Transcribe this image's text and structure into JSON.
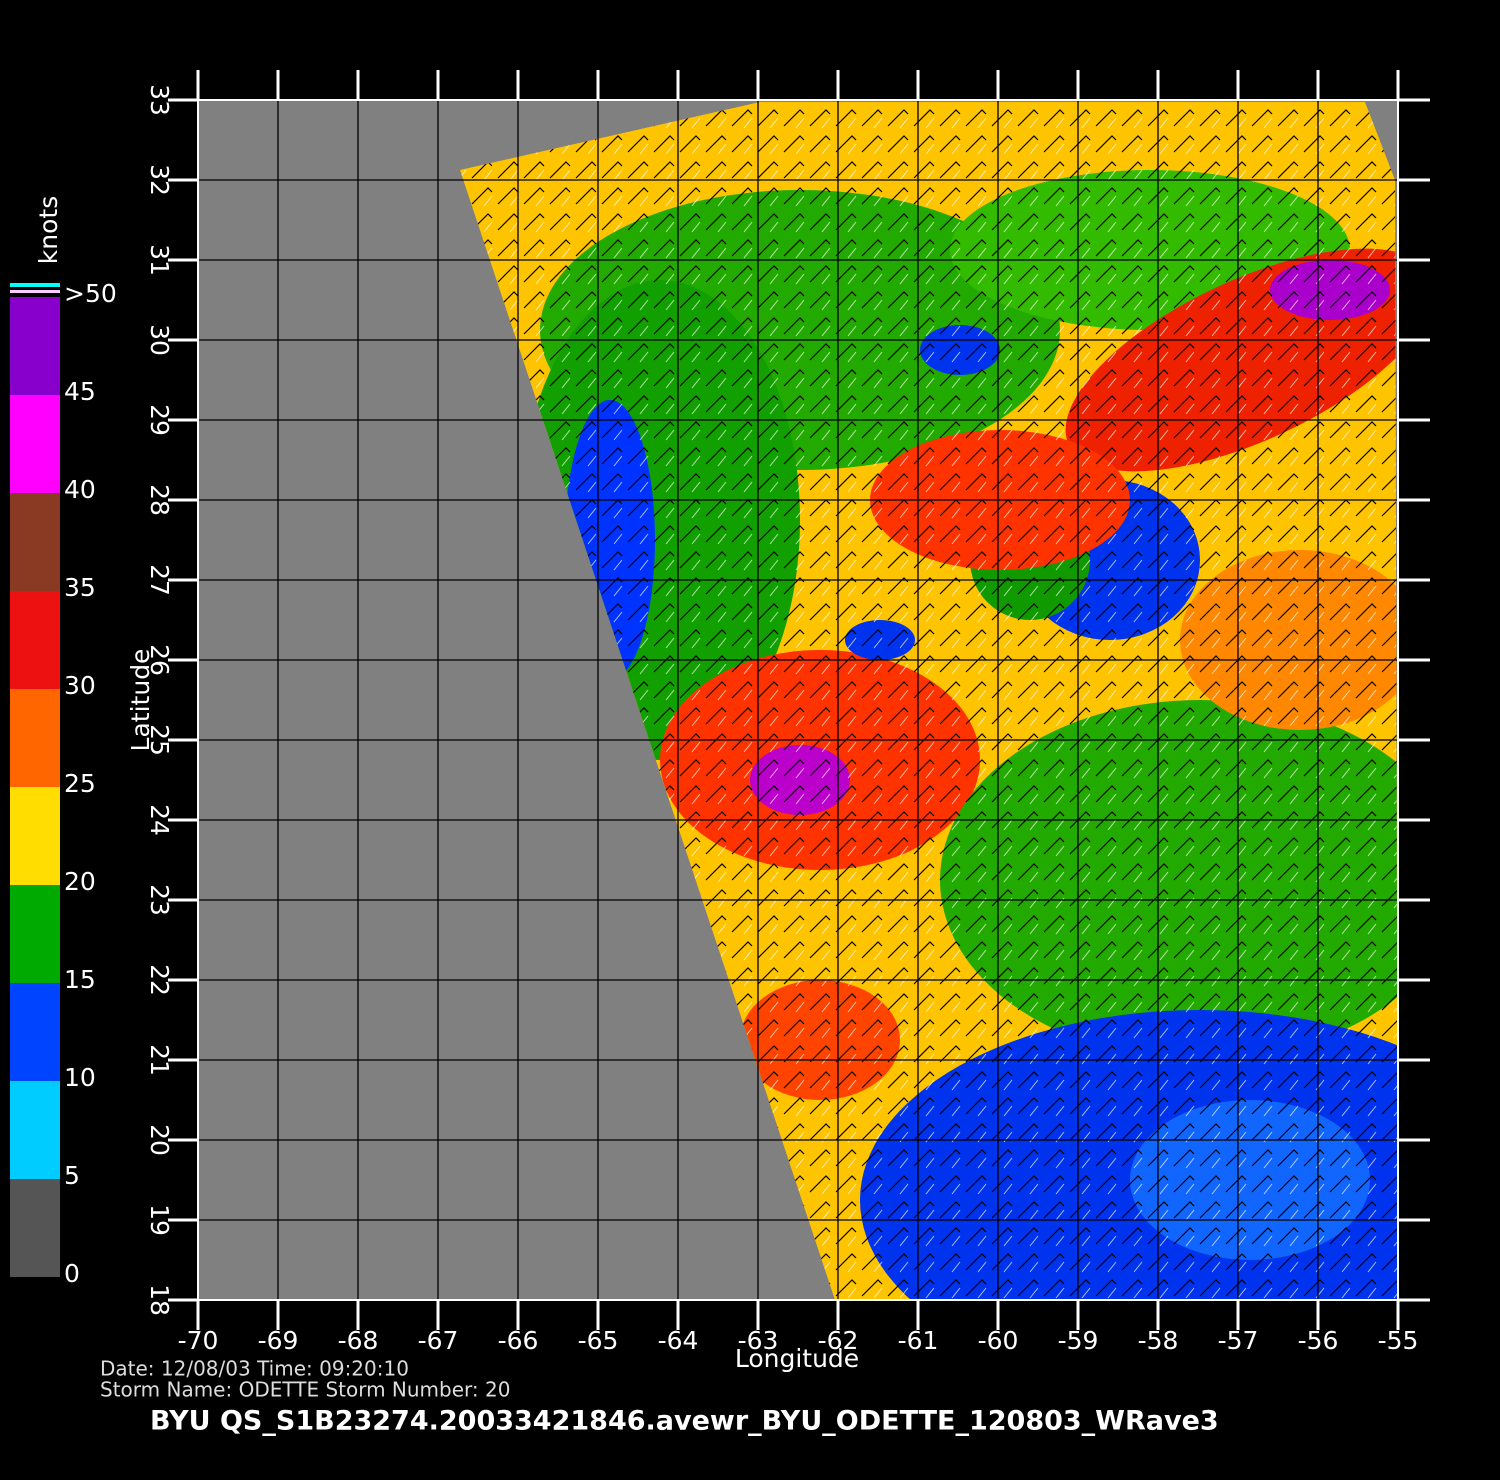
{
  "map": {
    "title": "BYU  QS_S1B23274.20033421846.avewr_BYU_ODETTE_120803_WRave3",
    "info_lines": [
      "Date: 12/08/03   Time: 09:20:10",
      "Storm  Name: ODETTE   Storm  Number: 20"
    ],
    "x_label": "Longitude",
    "y_label": "Latitude",
    "xlim": [
      -70,
      -55
    ],
    "ylim": [
      18,
      33
    ],
    "xticks": [
      -70,
      -69,
      -68,
      -67,
      -66,
      -65,
      -64,
      -63,
      -62,
      -61,
      -60,
      -59,
      -58,
      -57,
      -56,
      -55
    ],
    "yticks": [
      18,
      19,
      20,
      21,
      22,
      23,
      24,
      25,
      26,
      27,
      28,
      29,
      30,
      31,
      32,
      33
    ],
    "grid": true,
    "colorbar": {
      "label": "knots",
      "ticks": [
        0,
        5,
        10,
        15,
        20,
        25,
        30,
        35,
        40,
        45,
        {
          "value": 50,
          "label": ">50"
        }
      ],
      "colors": [
        "#555555",
        "#00ccff",
        "#0044ff",
        "#00aa00",
        "#ffdd00",
        "#ff6600",
        "#ee1111",
        "#8a3a22",
        "#ff00ff",
        "#8800cc"
      ]
    }
  }
}
